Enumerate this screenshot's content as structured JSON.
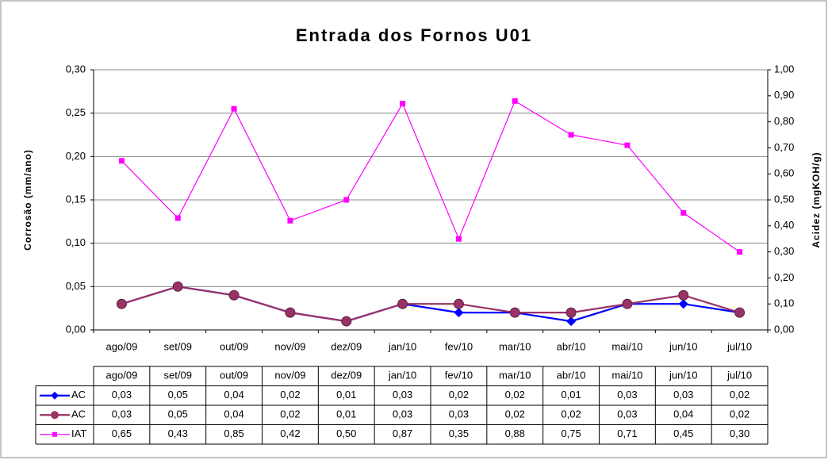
{
  "chart_data": {
    "type": "line",
    "title": "Entrada dos Fornos U01",
    "y_label": "Corrosão (mm/ano)",
    "y2_label": "Acidez (mgKOH/g)",
    "categories": [
      "ago/09",
      "set/09",
      "out/09",
      "nov/09",
      "dez/09",
      "jan/10",
      "fev/10",
      "mar/10",
      "abr/10",
      "mai/10",
      "jun/10",
      "jul/10"
    ],
    "series": [
      {
        "name": "AC",
        "color": "#0000ff",
        "marker": "diamond",
        "axis": "y",
        "values": [
          0.03,
          0.05,
          0.04,
          0.02,
          0.01,
          0.03,
          0.02,
          0.02,
          0.01,
          0.03,
          0.03,
          0.02
        ],
        "value_labels": [
          "0,03",
          "0,05",
          "0,04",
          "0,02",
          "0,01",
          "0,03",
          "0,02",
          "0,02",
          "0,01",
          "0,03",
          "0,03",
          "0,02"
        ]
      },
      {
        "name": "AC",
        "color": "#993366",
        "marker": "circle",
        "axis": "y",
        "values": [
          0.03,
          0.05,
          0.04,
          0.02,
          0.01,
          0.03,
          0.03,
          0.02,
          0.02,
          0.03,
          0.04,
          0.02
        ],
        "value_labels": [
          "0,03",
          "0,05",
          "0,04",
          "0,02",
          "0,01",
          "0,03",
          "0,03",
          "0,02",
          "0,02",
          "0,03",
          "0,04",
          "0,02"
        ]
      },
      {
        "name": "IAT",
        "color": "#ff00ff",
        "marker": "square",
        "axis": "y2",
        "values": [
          0.65,
          0.43,
          0.85,
          0.42,
          0.5,
          0.87,
          0.35,
          0.88,
          0.75,
          0.71,
          0.45,
          0.3
        ],
        "value_labels": [
          "0,65",
          "0,43",
          "0,85",
          "0,42",
          "0,50",
          "0,87",
          "0,35",
          "0,88",
          "0,75",
          "0,71",
          "0,45",
          "0,30"
        ]
      }
    ],
    "ylim": [
      0,
      0.3
    ],
    "yticks": [
      {
        "value": 0,
        "label": "0,00"
      },
      {
        "value": 0.05,
        "label": "0,05"
      },
      {
        "value": 0.1,
        "label": "0,10"
      },
      {
        "value": 0.15,
        "label": "0,15"
      },
      {
        "value": 0.2,
        "label": "0,20"
      },
      {
        "value": 0.25,
        "label": "0,25"
      },
      {
        "value": 0.3,
        "label": "0,30"
      }
    ],
    "y2lim": [
      0,
      1
    ],
    "y2ticks": [
      {
        "value": 0,
        "label": "0,00"
      },
      {
        "value": 0.1,
        "label": "0,10"
      },
      {
        "value": 0.2,
        "label": "0,20"
      },
      {
        "value": 0.3,
        "label": "0,30"
      },
      {
        "value": 0.4,
        "label": "0,40"
      },
      {
        "value": 0.5,
        "label": "0,50"
      },
      {
        "value": 0.6,
        "label": "0,60"
      },
      {
        "value": 0.7,
        "label": "0,70"
      },
      {
        "value": 0.8,
        "label": "0,80"
      },
      {
        "value": 0.9,
        "label": "0,90"
      },
      {
        "value": 1,
        "label": "1,00"
      }
    ],
    "grid": true
  }
}
